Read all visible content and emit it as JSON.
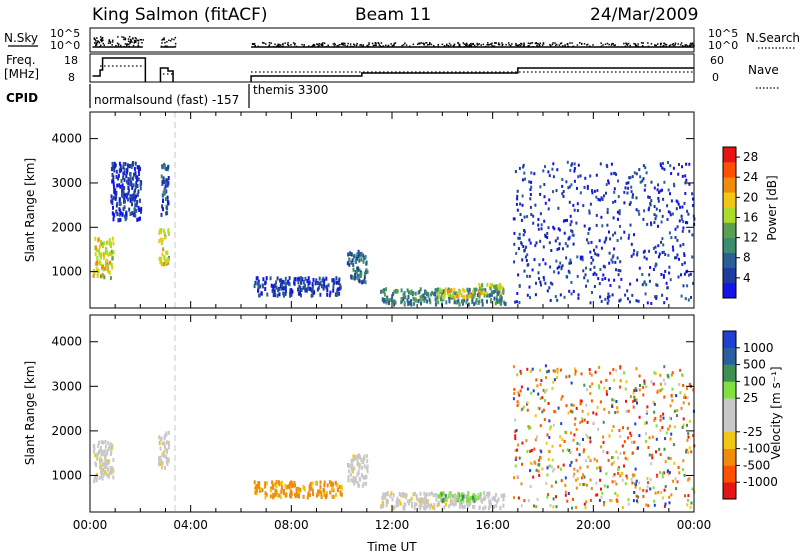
{
  "header": {
    "station": "King Salmon (fitACF)",
    "beam": "Beam 11",
    "date": "24/Mar/2009"
  },
  "strips": {
    "nsky_label": "N.Sky",
    "nsearch_label": "N.Search",
    "nsky_ticks": [
      "10^5",
      "10^0"
    ],
    "nsearch_ticks": [
      "10^5",
      "10^0"
    ],
    "freq_label": [
      "Freq.",
      "[MHz]"
    ],
    "freq_ticks": [
      "18",
      "8"
    ],
    "nave_label": "Nave",
    "nave_ticks": [
      "60",
      "0"
    ],
    "cpid_label": "CPID",
    "cpid_segments": [
      {
        "label": "normalsound (fast) -157",
        "start_hour": 0.0,
        "end_hour": 6.3
      },
      {
        "label": "themis 3300",
        "start_hour": 6.3,
        "end_hour": 24.0
      }
    ]
  },
  "chart_data": [
    {
      "type": "heatmap",
      "title": "",
      "xlabel": "Time UT",
      "ylabel": "Slant Range [km]",
      "xlim": [
        0,
        24
      ],
      "ylim": [
        180,
        4600
      ],
      "x_ticks": [
        "00:00",
        "04:00",
        "08:00",
        "12:00",
        "16:00",
        "20:00",
        "00:00"
      ],
      "y_ticks": [
        1000,
        2000,
        3000,
        4000
      ],
      "colorbar": {
        "label": "Power [dB]",
        "range": [
          0,
          30
        ],
        "ticks": [
          4,
          8,
          12,
          16,
          20,
          24,
          28
        ],
        "colors": [
          "#1414e6",
          "#1e3ca0",
          "#2a5f96",
          "#3c8c6e",
          "#5aa050",
          "#aadc28",
          "#f0c814",
          "#f08c0a",
          "#ff5000",
          "#e61414"
        ]
      },
      "echo_regions": [
        {
          "t": [
            0.1,
            0.9
          ],
          "range_km": [
            900,
            1800
          ],
          "level_db": 18
        },
        {
          "t": [
            0.8,
            2.0
          ],
          "range_km": [
            2200,
            3500
          ],
          "level_db": 4
        },
        {
          "t": [
            2.7,
            3.1
          ],
          "range_km": [
            1200,
            2000
          ],
          "level_db": 18
        },
        {
          "t": [
            2.8,
            3.1
          ],
          "range_km": [
            2300,
            3500
          ],
          "level_db": 6
        },
        {
          "t": [
            6.5,
            10.0
          ],
          "range_km": [
            500,
            900
          ],
          "level_db": 5
        },
        {
          "t": [
            10.2,
            11.0
          ],
          "range_km": [
            800,
            1500
          ],
          "level_db": 8
        },
        {
          "t": [
            11.5,
            16.5
          ],
          "range_km": [
            300,
            650
          ],
          "level_db": 10
        },
        {
          "t": [
            13.8,
            15.5
          ],
          "range_km": [
            450,
            650
          ],
          "level_db": 18
        },
        {
          "t": [
            15.4,
            16.4
          ],
          "range_km": [
            550,
            750
          ],
          "level_db": 16
        },
        {
          "t": [
            16.8,
            24.0
          ],
          "range_km": [
            300,
            3500
          ],
          "level_db": 4
        }
      ]
    },
    {
      "type": "heatmap",
      "title": "",
      "xlabel": "Time UT",
      "ylabel": "Slant Range [km]",
      "xlim": [
        0,
        24
      ],
      "ylim": [
        180,
        4600
      ],
      "x_ticks": [
        "00:00",
        "04:00",
        "08:00",
        "12:00",
        "16:00",
        "20:00",
        "00:00"
      ],
      "y_ticks": [
        1000,
        2000,
        3000,
        4000
      ],
      "colorbar": {
        "label": "Velocity [m s⁻¹]",
        "ticks": [
          "1000",
          "500",
          "100",
          "25",
          "-25",
          "-100",
          "-500",
          "-1000"
        ],
        "colors": [
          "#2040d0",
          "#2a5fa0",
          "#3c9050",
          "#80e040",
          "#c8c8c8",
          "#c8c8c8",
          "#f0c814",
          "#f08c0a",
          "#ff5000",
          "#e61414"
        ]
      },
      "echo_regions": [
        {
          "t": [
            0.1,
            0.9
          ],
          "range_km": [
            900,
            1800
          ],
          "velocity_ms": 0
        },
        {
          "t": [
            2.7,
            3.1
          ],
          "range_km": [
            1200,
            2000
          ],
          "velocity_ms": 0
        },
        {
          "t": [
            6.5,
            10.0
          ],
          "range_km": [
            550,
            900
          ],
          "velocity_ms": -300
        },
        {
          "t": [
            10.2,
            11.0
          ],
          "range_km": [
            800,
            1500
          ],
          "velocity_ms": 0
        },
        {
          "t": [
            11.5,
            16.5
          ],
          "range_km": [
            300,
            650
          ],
          "velocity_ms": 0
        },
        {
          "t": [
            13.8,
            15.5
          ],
          "range_km": [
            450,
            650
          ],
          "velocity_ms": 50
        },
        {
          "t": [
            16.8,
            24.0
          ],
          "range_km": [
            300,
            3500
          ],
          "velocity_ms": -400
        }
      ]
    }
  ]
}
